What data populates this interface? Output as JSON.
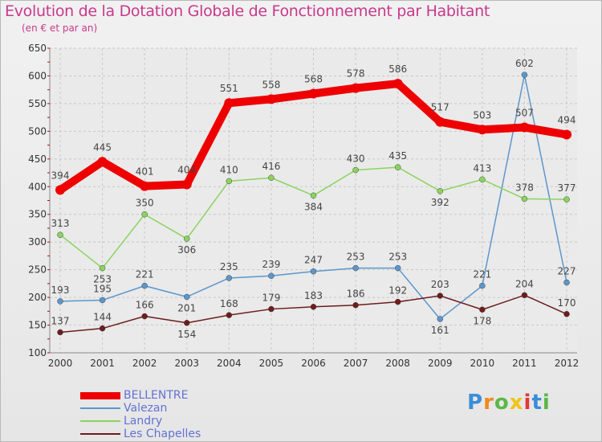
{
  "chart_data": {
    "type": "line",
    "title": "Evolution de la Dotation Globale de Fonctionnement par Habitant",
    "subtitle": "(en € et par an)",
    "x": [
      "2000",
      "2001",
      "2002",
      "2003",
      "2004",
      "2005",
      "2006",
      "2007",
      "2008",
      "2009",
      "2010",
      "2011",
      "2012"
    ],
    "ylim": [
      100,
      650
    ],
    "yticks": [
      100,
      150,
      200,
      250,
      300,
      350,
      400,
      450,
      500,
      550,
      600,
      650
    ],
    "grid": true,
    "legend_position": "bottom-left",
    "series": [
      {
        "name": "BELLENTRE",
        "color": "#ee0000",
        "thick": true,
        "values": [
          394,
          445,
          401,
          404,
          551,
          558,
          568,
          578,
          586,
          517,
          503,
          507,
          494
        ]
      },
      {
        "name": "Valezan",
        "color": "#5c96cc",
        "thick": false,
        "values": [
          193,
          195,
          221,
          201,
          235,
          239,
          247,
          253,
          253,
          161,
          221,
          602,
          227
        ]
      },
      {
        "name": "Landry",
        "color": "#8ad45e",
        "thick": false,
        "values": [
          313,
          253,
          350,
          306,
          410,
          416,
          384,
          430,
          435,
          392,
          413,
          378,
          377
        ]
      },
      {
        "name": "Les Chapelles",
        "color": "#6e1c1c",
        "thick": false,
        "values": [
          137,
          144,
          166,
          154,
          168,
          179,
          183,
          186,
          192,
          203,
          178,
          204,
          170
        ]
      }
    ]
  },
  "logo": {
    "letters": [
      "P",
      "r",
      "o",
      "x",
      "i",
      "t",
      "i"
    ],
    "colors": [
      "#3a8ed8",
      "#f08a1c",
      "#5ab848",
      "#f0c418",
      "#e03838",
      "#3a8ed8",
      "#5ab848"
    ]
  }
}
